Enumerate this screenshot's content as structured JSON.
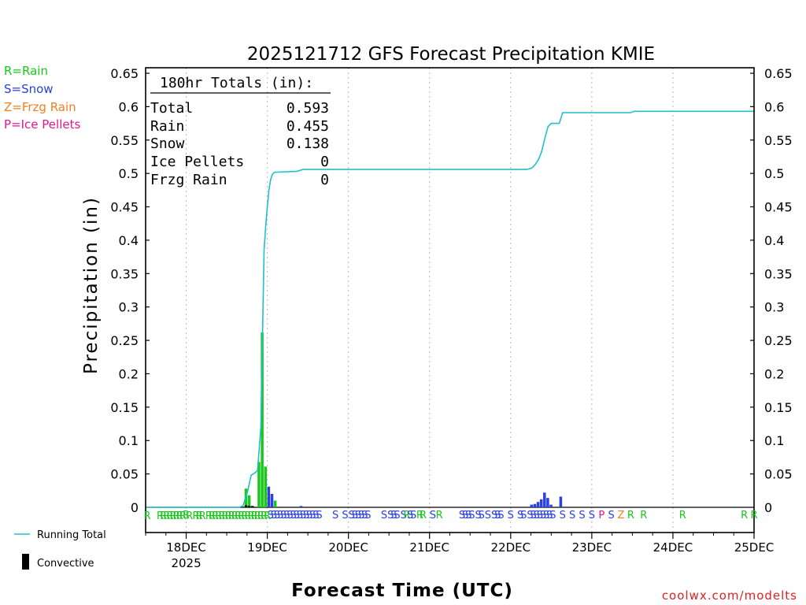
{
  "chart_data": {
    "type": "bar",
    "title": "2025121712 GFS Forecast Precipitation KMIE",
    "xlabel": "Forecast Time (UTC)",
    "ylabel": "Precipitation (in)",
    "ylim": [
      0,
      0.65
    ],
    "xlim_days": [
      -0.5,
      7.0
    ],
    "y_ticks": [
      "0.65",
      "0.6",
      "0.55",
      "0.5",
      "0.45",
      "0.4",
      "0.35",
      "0.3",
      "0.25",
      "0.2",
      "0.15",
      "0.1",
      "0.05",
      "0"
    ],
    "x_ticks": [
      {
        "label": "18DEC",
        "sublabel": "2025",
        "day": 0
      },
      {
        "label": "19DEC",
        "day": 1
      },
      {
        "label": "20DEC",
        "day": 2
      },
      {
        "label": "21DEC",
        "day": 3
      },
      {
        "label": "22DEC",
        "day": 4
      },
      {
        "label": "23DEC",
        "day": 5
      },
      {
        "label": "24DEC",
        "day": 6
      },
      {
        "label": "25DEC",
        "day": 7
      }
    ],
    "totals_box": {
      "heading": "180hr Totals (in):",
      "rows": [
        {
          "label": "Total",
          "value": "0.593"
        },
        {
          "label": "Rain",
          "value": "0.455"
        },
        {
          "label": "Snow",
          "value": "0.138"
        },
        {
          "label": "Ice Pellets",
          "value": "0"
        },
        {
          "label": "Frzg Rain",
          "value": "0"
        }
      ]
    },
    "legend": {
      "ptypes": [
        {
          "code": "R",
          "text": "R=Rain",
          "color": "#18c818"
        },
        {
          "code": "S",
          "text": "S=Snow",
          "color": "#2a40e0"
        },
        {
          "code": "Z",
          "text": "Z=Frzg Rain",
          "color": "#f08020"
        },
        {
          "code": "P",
          "text": "P=Ice Pellets",
          "color": "#e01890"
        }
      ],
      "running_total": {
        "text": "Running Total",
        "color": "#20c0c8"
      },
      "convective": {
        "text": "Convective",
        "color": "#000000"
      }
    },
    "series": [
      {
        "name": "Rain",
        "color": "#18c818",
        "bars": [
          {
            "day": 0.76,
            "value": 0.028
          },
          {
            "day": 0.8,
            "value": 0.018
          },
          {
            "day": 0.92,
            "value": 0.068
          },
          {
            "day": 0.96,
            "value": 0.262
          },
          {
            "day": 1.0,
            "value": 0.061
          },
          {
            "day": 1.12,
            "value": 0.01
          }
        ]
      },
      {
        "name": "Snow",
        "color": "#2a40e0",
        "bars": [
          {
            "day": 1.04,
            "value": 0.031
          },
          {
            "day": 1.08,
            "value": 0.02
          },
          {
            "day": 1.44,
            "value": 0.002
          },
          {
            "day": 4.28,
            "value": 0.004
          },
          {
            "day": 4.32,
            "value": 0.005
          },
          {
            "day": 4.36,
            "value": 0.008
          },
          {
            "day": 4.4,
            "value": 0.012
          },
          {
            "day": 4.44,
            "value": 0.022
          },
          {
            "day": 4.48,
            "value": 0.014
          },
          {
            "day": 4.52,
            "value": 0.004
          },
          {
            "day": 4.64,
            "value": 0.016
          }
        ]
      },
      {
        "name": "Convective",
        "color": "#000000",
        "bars": [
          {
            "day": 0.76,
            "value": 0.003
          },
          {
            "day": 0.8,
            "value": 0.002
          },
          {
            "day": 0.84,
            "value": 0.002
          }
        ]
      },
      {
        "name": "Running Total",
        "type": "line",
        "color": "#20c0c8",
        "x_days": [
          -0.5,
          0.65,
          0.7,
          0.76,
          0.8,
          0.84,
          0.88,
          0.92,
          0.94,
          0.96,
          0.98,
          1.0,
          1.02,
          1.04,
          1.06,
          1.08,
          1.1,
          1.12,
          1.36,
          1.44,
          4.2,
          4.26,
          4.3,
          4.34,
          4.38,
          4.42,
          4.46,
          4.5,
          4.52,
          4.6,
          4.62,
          4.64,
          5.48,
          5.52,
          7.0
        ],
        "values": [
          0.0,
          0.0,
          0.002,
          0.025,
          0.048,
          0.051,
          0.055,
          0.12,
          0.25,
          0.385,
          0.42,
          0.45,
          0.475,
          0.49,
          0.498,
          0.501,
          0.502,
          0.502,
          0.503,
          0.506,
          0.506,
          0.508,
          0.513,
          0.52,
          0.532,
          0.552,
          0.57,
          0.575,
          0.575,
          0.575,
          0.583,
          0.591,
          0.591,
          0.593,
          0.593
        ]
      }
    ],
    "ptype_strip": {
      "rows": [
        {
          "level": "upper",
          "items": [
            {
              "day": 0.0,
              "code": "R"
            },
            {
              "day": 1.04,
              "code": "S"
            },
            {
              "day": 1.08,
              "code": "S"
            },
            {
              "day": 1.12,
              "code": "S"
            },
            {
              "day": 1.16,
              "code": "S"
            },
            {
              "day": 1.2,
              "code": "S"
            },
            {
              "day": 1.24,
              "code": "S"
            },
            {
              "day": 1.28,
              "code": "S"
            },
            {
              "day": 1.32,
              "code": "S"
            },
            {
              "day": 1.36,
              "code": "S"
            },
            {
              "day": 1.4,
              "code": "S"
            },
            {
              "day": 1.44,
              "code": "S"
            },
            {
              "day": 1.48,
              "code": "S"
            },
            {
              "day": 1.52,
              "code": "S"
            },
            {
              "day": 1.56,
              "code": "S"
            },
            {
              "day": 1.6,
              "code": "S"
            },
            {
              "day": 1.64,
              "code": "S"
            },
            {
              "day": 1.84,
              "code": "S"
            },
            {
              "day": 1.96,
              "code": "S"
            },
            {
              "day": 2.04,
              "code": "S"
            },
            {
              "day": 2.08,
              "code": "S"
            },
            {
              "day": 2.12,
              "code": "S"
            },
            {
              "day": 2.16,
              "code": "S"
            },
            {
              "day": 2.2,
              "code": "S"
            },
            {
              "day": 2.24,
              "code": "S"
            },
            {
              "day": 2.44,
              "code": "S"
            },
            {
              "day": 2.52,
              "code": "S"
            },
            {
              "day": 2.56,
              "code": "S"
            },
            {
              "day": 2.6,
              "code": "S"
            },
            {
              "day": 2.68,
              "code": "S"
            },
            {
              "day": 2.72,
              "code": "R"
            },
            {
              "day": 2.76,
              "code": "S"
            },
            {
              "day": 2.8,
              "code": "S"
            },
            {
              "day": 2.88,
              "code": "R"
            },
            {
              "day": 2.92,
              "code": "R"
            },
            {
              "day": 3.04,
              "code": "S"
            },
            {
              "day": 3.12,
              "code": "R"
            },
            {
              "day": 3.4,
              "code": "S"
            },
            {
              "day": 3.44,
              "code": "S"
            },
            {
              "day": 3.48,
              "code": "S"
            },
            {
              "day": 3.52,
              "code": "S"
            },
            {
              "day": 3.6,
              "code": "S"
            },
            {
              "day": 3.64,
              "code": "S"
            },
            {
              "day": 3.72,
              "code": "S"
            },
            {
              "day": 3.8,
              "code": "S"
            },
            {
              "day": 3.84,
              "code": "S"
            },
            {
              "day": 3.88,
              "code": "S"
            },
            {
              "day": 4.0,
              "code": "S"
            },
            {
              "day": 4.12,
              "code": "S"
            },
            {
              "day": 4.16,
              "code": "S"
            },
            {
              "day": 4.24,
              "code": "S"
            },
            {
              "day": 4.28,
              "code": "S"
            },
            {
              "day": 4.32,
              "code": "S"
            },
            {
              "day": 4.36,
              "code": "S"
            },
            {
              "day": 4.4,
              "code": "S"
            },
            {
              "day": 4.44,
              "code": "S"
            },
            {
              "day": 4.48,
              "code": "S"
            },
            {
              "day": 4.52,
              "code": "S"
            },
            {
              "day": 4.64,
              "code": "S"
            },
            {
              "day": 4.76,
              "code": "S"
            },
            {
              "day": 4.88,
              "code": "S"
            },
            {
              "day": 5.0,
              "code": "S"
            },
            {
              "day": 5.12,
              "code": "P"
            },
            {
              "day": 5.24,
              "code": "S"
            },
            {
              "day": 5.36,
              "code": "Z"
            },
            {
              "day": 5.48,
              "code": "R"
            },
            {
              "day": 5.64,
              "code": "R"
            },
            {
              "day": 6.12,
              "code": "R"
            },
            {
              "day": 6.88,
              "code": "R"
            },
            {
              "day": 7.0,
              "code": "R"
            }
          ]
        },
        {
          "level": "lower",
          "items": [
            {
              "day": -0.48,
              "code": "R"
            },
            {
              "day": -0.32,
              "code": "R"
            },
            {
              "day": -0.28,
              "code": "R"
            },
            {
              "day": -0.24,
              "code": "R"
            },
            {
              "day": -0.2,
              "code": "R"
            },
            {
              "day": -0.16,
              "code": "R"
            },
            {
              "day": -0.12,
              "code": "R"
            },
            {
              "day": -0.08,
              "code": "R"
            },
            {
              "day": -0.04,
              "code": "R"
            },
            {
              "day": 0.04,
              "code": "R"
            },
            {
              "day": 0.12,
              "code": "R"
            },
            {
              "day": 0.16,
              "code": "R"
            },
            {
              "day": 0.2,
              "code": "R"
            },
            {
              "day": 0.28,
              "code": "R"
            },
            {
              "day": 0.32,
              "code": "R"
            },
            {
              "day": 0.36,
              "code": "R"
            },
            {
              "day": 0.4,
              "code": "R"
            },
            {
              "day": 0.44,
              "code": "R"
            },
            {
              "day": 0.48,
              "code": "R"
            },
            {
              "day": 0.52,
              "code": "R"
            },
            {
              "day": 0.56,
              "code": "R"
            },
            {
              "day": 0.6,
              "code": "R"
            },
            {
              "day": 0.64,
              "code": "R"
            },
            {
              "day": 0.68,
              "code": "R"
            },
            {
              "day": 0.72,
              "code": "R"
            },
            {
              "day": 0.76,
              "code": "R"
            },
            {
              "day": 0.8,
              "code": "R"
            },
            {
              "day": 0.84,
              "code": "R"
            },
            {
              "day": 0.88,
              "code": "R"
            },
            {
              "day": 0.92,
              "code": "R"
            },
            {
              "day": 0.96,
              "code": "R"
            },
            {
              "day": 1.0,
              "code": "R"
            }
          ]
        }
      ]
    }
  },
  "footer": {
    "credit": "coolwx.com/modelts"
  }
}
